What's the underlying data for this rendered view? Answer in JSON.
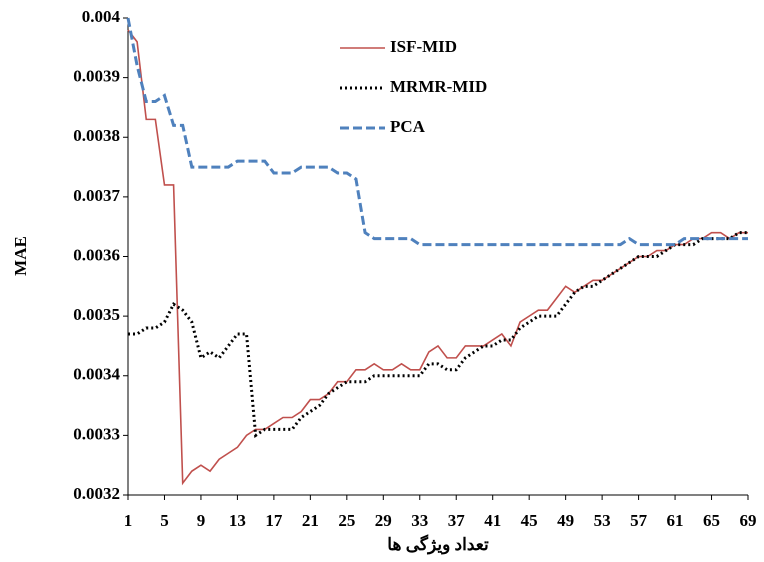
{
  "chart_data": {
    "type": "line",
    "x_label": "تعداد ویژگی ها",
    "y_label": "MAE",
    "x": [
      1,
      2,
      3,
      4,
      5,
      6,
      7,
      8,
      9,
      10,
      11,
      12,
      13,
      14,
      15,
      16,
      17,
      18,
      19,
      20,
      21,
      22,
      23,
      24,
      25,
      26,
      27,
      28,
      29,
      30,
      31,
      32,
      33,
      34,
      35,
      36,
      37,
      38,
      39,
      40,
      41,
      42,
      43,
      44,
      45,
      46,
      47,
      48,
      49,
      50,
      51,
      52,
      53,
      54,
      55,
      56,
      57,
      58,
      59,
      60,
      61,
      62,
      63,
      64,
      65,
      66,
      67,
      68,
      69
    ],
    "series": [
      {
        "name": "ISF-MID",
        "color": "#c0504d",
        "style": "solid",
        "values": [
          0.00398,
          0.00396,
          0.00383,
          0.00383,
          0.00372,
          0.00372,
          0.00322,
          0.00324,
          0.00325,
          0.00324,
          0.00326,
          0.00327,
          0.00328,
          0.0033,
          0.00331,
          0.00331,
          0.00332,
          0.00333,
          0.00333,
          0.00334,
          0.00336,
          0.00336,
          0.00337,
          0.00339,
          0.00339,
          0.00341,
          0.00341,
          0.00342,
          0.00341,
          0.00341,
          0.00342,
          0.00341,
          0.00341,
          0.00344,
          0.00345,
          0.00343,
          0.00343,
          0.00345,
          0.00345,
          0.00345,
          0.00346,
          0.00347,
          0.00345,
          0.00349,
          0.0035,
          0.00351,
          0.00351,
          0.00353,
          0.00355,
          0.00354,
          0.00355,
          0.00356,
          0.00356,
          0.00357,
          0.00358,
          0.00359,
          0.0036,
          0.0036,
          0.00361,
          0.00361,
          0.00362,
          0.00362,
          0.00363,
          0.00363,
          0.00364,
          0.00364,
          0.00363,
          0.00364,
          0.00364
        ]
      },
      {
        "name": "MRMR-MID",
        "color": "#000000",
        "style": "dotted",
        "values": [
          0.00347,
          0.00347,
          0.00348,
          0.00348,
          0.00349,
          0.00352,
          0.00351,
          0.00349,
          0.00343,
          0.00344,
          0.00343,
          0.00345,
          0.00347,
          0.00347,
          0.0033,
          0.00331,
          0.00331,
          0.00331,
          0.00331,
          0.00333,
          0.00334,
          0.00335,
          0.00337,
          0.00338,
          0.00339,
          0.00339,
          0.00339,
          0.0034,
          0.0034,
          0.0034,
          0.0034,
          0.0034,
          0.0034,
          0.00342,
          0.00342,
          0.00341,
          0.00341,
          0.00343,
          0.00344,
          0.00345,
          0.00345,
          0.00346,
          0.00346,
          0.00348,
          0.00349,
          0.0035,
          0.0035,
          0.0035,
          0.00352,
          0.00354,
          0.00355,
          0.00355,
          0.00356,
          0.00357,
          0.00358,
          0.00359,
          0.0036,
          0.0036,
          0.0036,
          0.00361,
          0.00362,
          0.00362,
          0.00362,
          0.00363,
          0.00363,
          0.00363,
          0.00363,
          0.00364,
          0.00364
        ]
      },
      {
        "name": "PCA",
        "color": "#4f81bd",
        "style": "dashed",
        "values": [
          0.004,
          0.00392,
          0.00386,
          0.00386,
          0.00387,
          0.00382,
          0.00382,
          0.00375,
          0.00375,
          0.00375,
          0.00375,
          0.00375,
          0.00376,
          0.00376,
          0.00376,
          0.00376,
          0.00374,
          0.00374,
          0.00374,
          0.00375,
          0.00375,
          0.00375,
          0.00375,
          0.00374,
          0.00374,
          0.00373,
          0.00364,
          0.00363,
          0.00363,
          0.00363,
          0.00363,
          0.00363,
          0.00362,
          0.00362,
          0.00362,
          0.00362,
          0.00362,
          0.00362,
          0.00362,
          0.00362,
          0.00362,
          0.00362,
          0.00362,
          0.00362,
          0.00362,
          0.00362,
          0.00362,
          0.00362,
          0.00362,
          0.00362,
          0.00362,
          0.00362,
          0.00362,
          0.00362,
          0.00362,
          0.00363,
          0.00362,
          0.00362,
          0.00362,
          0.00362,
          0.00362,
          0.00363,
          0.00363,
          0.00363,
          0.00363,
          0.00363,
          0.00363,
          0.00363,
          0.00363
        ]
      }
    ],
    "xlim": [
      1,
      69
    ],
    "xticks": [
      1,
      5,
      9,
      13,
      17,
      21,
      25,
      29,
      33,
      37,
      41,
      45,
      49,
      53,
      57,
      61,
      65,
      69
    ],
    "ylim": [
      0.0032,
      0.004
    ],
    "yticks": [
      0.0032,
      0.0033,
      0.0034,
      0.0035,
      0.0036,
      0.0037,
      0.0038,
      0.0039,
      0.004
    ],
    "grid": false
  }
}
